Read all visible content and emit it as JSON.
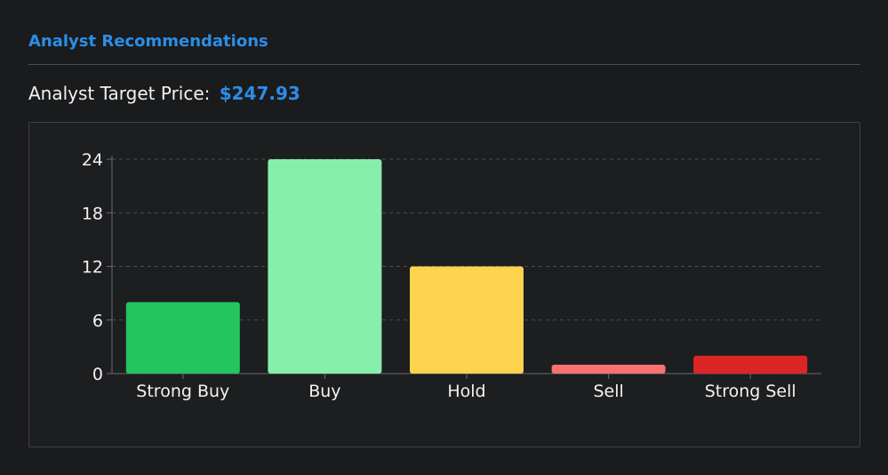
{
  "header": {
    "title": "Analyst Recommendations"
  },
  "target": {
    "label": "Analyst Target Price:",
    "value": "$247.93"
  },
  "chart_data": {
    "type": "bar",
    "categories": [
      "Strong Buy",
      "Buy",
      "Hold",
      "Sell",
      "Strong Sell"
    ],
    "values": [
      8,
      24,
      12,
      1,
      2
    ],
    "colors": [
      "#22c55e",
      "#86efac",
      "#fcd34d",
      "#f87171",
      "#dc2626"
    ],
    "yticks": [
      0,
      6,
      12,
      18,
      24
    ],
    "ylim": [
      0,
      24
    ],
    "grid": true,
    "title": "",
    "xlabel": "",
    "ylabel": ""
  }
}
